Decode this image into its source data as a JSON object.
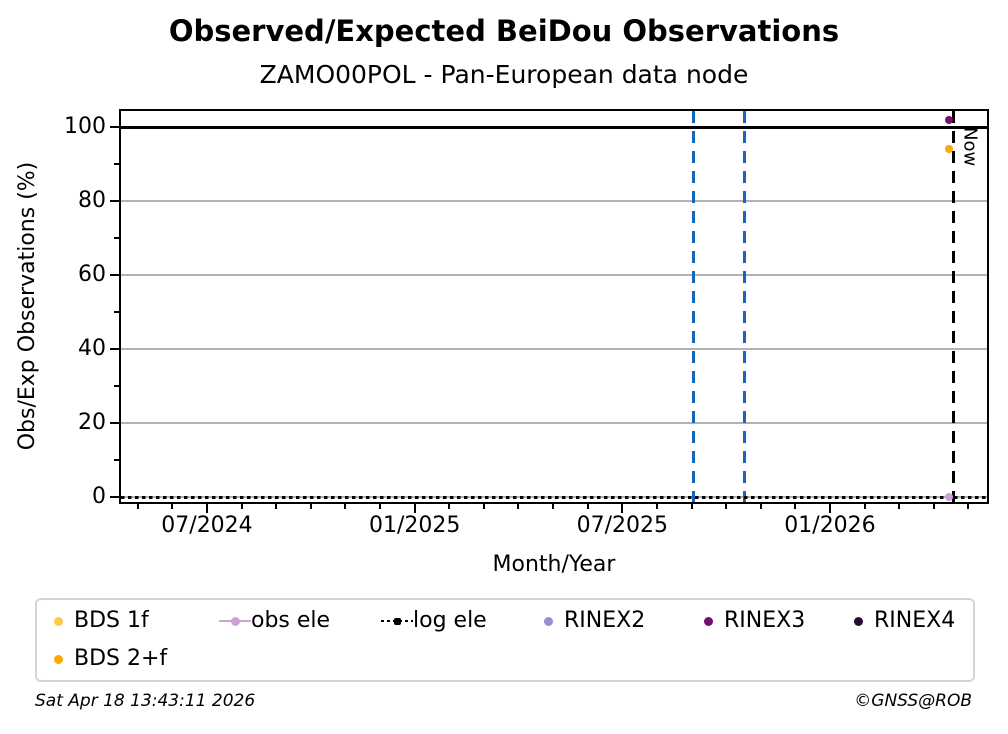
{
  "header": {
    "title": "Observed/Expected BeiDou Observations",
    "subtitle": "ZAMO00POL - Pan-European data node"
  },
  "footer": {
    "timestamp": "Sat Apr 18 13:43:11 2026",
    "copyright": "©GNSS@ROB"
  },
  "chart_data": {
    "type": "scatter",
    "title": "Observed/Expected BeiDou Observations",
    "subtitle": "ZAMO00POL - Pan-European data node",
    "xlabel": "Month/Year",
    "ylabel": "Obs/Exp Observations (%)",
    "x_ticks": [
      {
        "label": "07/2024",
        "date": "2024-07-01"
      },
      {
        "label": "01/2025",
        "date": "2025-01-01"
      },
      {
        "label": "07/2025",
        "date": "2025-07-01"
      },
      {
        "label": "01/2026",
        "date": "2026-01-01"
      }
    ],
    "x_minor_tick_interval": "1 month",
    "x_range": [
      "2024-04-15",
      "2026-05-17"
    ],
    "y_ticks": [
      0,
      20,
      40,
      60,
      80,
      100
    ],
    "y_minor_ticks": [
      10,
      30,
      50,
      70,
      90
    ],
    "y_range": [
      -1.6,
      104.6
    ],
    "grid": {
      "horizontal": true,
      "vertical": false,
      "color": "#b2b2b2",
      "legend_position": "bottom"
    },
    "reference_lines": [
      {
        "name": "expected-100-line",
        "orientation": "horizontal",
        "y": 100,
        "style": "solid",
        "color": "#000000"
      },
      {
        "name": "log-ele-zero-line",
        "orientation": "horizontal",
        "y": 0,
        "style": "dotted",
        "color": "#000000"
      }
    ],
    "event_lines": [
      {
        "name": "data-gap-start",
        "date": "2025-09-03",
        "style": "dashed",
        "color": "#1565c0"
      },
      {
        "name": "data-gap-end",
        "date": "2025-10-17",
        "style": "dashed",
        "color": "#1565c0"
      },
      {
        "name": "now",
        "date": "2026-04-18",
        "style": "dashed",
        "color": "#000000",
        "label": "Now"
      }
    ],
    "series": [
      {
        "name": "BDS 1f",
        "color": "#ffc845",
        "marker": "dot",
        "points": [
          {
            "date": "2026-04-14",
            "value": 94
          }
        ]
      },
      {
        "name": "BDS 2+f",
        "color": "#ffa702",
        "marker": "dot",
        "points": [
          {
            "date": "2026-04-14",
            "value": 94
          }
        ]
      },
      {
        "name": "obs ele",
        "color": "#cda2d9",
        "marker": "line-dot",
        "points": [
          {
            "date": "2026-04-14",
            "value": 0
          }
        ]
      },
      {
        "name": "log ele",
        "color": "#000000",
        "marker": "dotted-line",
        "points": [],
        "note": "rendered as dotted line at 0% across full x-range"
      },
      {
        "name": "RINEX2",
        "color": "#9191cb",
        "marker": "dot",
        "points": []
      },
      {
        "name": "RINEX3",
        "color": "#72106b",
        "marker": "dot",
        "points": [
          {
            "date": "2026-04-14",
            "value": 102
          }
        ]
      },
      {
        "name": "RINEX4",
        "color": "#2b0b35",
        "marker": "dot",
        "points": []
      }
    ]
  },
  "legend": {
    "items": [
      {
        "label": "BDS 1f",
        "marker": "dot",
        "color": "#ffc845"
      },
      {
        "label": "obs ele",
        "marker": "line-dot",
        "color": "#cda2d9"
      },
      {
        "label": "log ele",
        "marker": "dotted-line",
        "color": "#000000"
      },
      {
        "label": "RINEX2",
        "marker": "dot",
        "color": "#9191cb"
      },
      {
        "label": "RINEX3",
        "marker": "dot",
        "color": "#72106b"
      },
      {
        "label": "RINEX4",
        "marker": "dot",
        "color": "#2b0b35"
      },
      {
        "label": "BDS 2+f",
        "marker": "dot",
        "color": "#ffa702"
      }
    ]
  }
}
